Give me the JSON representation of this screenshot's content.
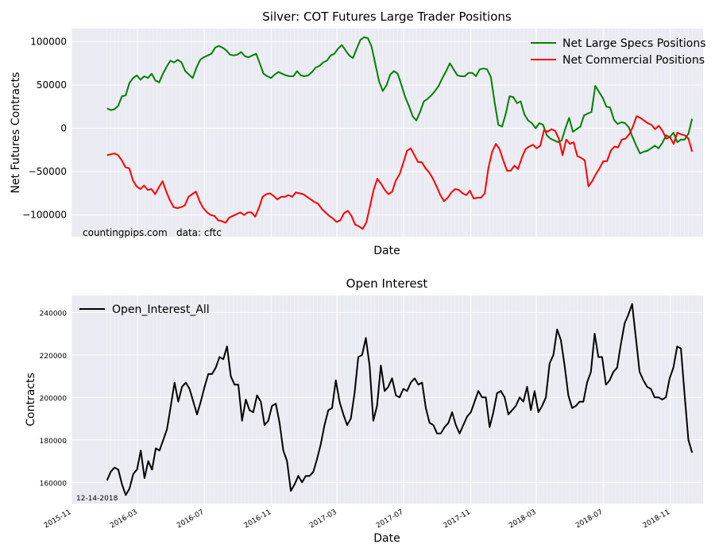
{
  "chart_data": [
    {
      "type": "line",
      "title": "Silver: COT Futures Large Trader Positions",
      "xlabel": "Date",
      "ylabel": "Net Futures Contracts",
      "x_range": [
        "2015-11-01",
        "2018-12-31"
      ],
      "ylim": [
        -125000,
        115000
      ],
      "y_ticks": [
        -100000,
        -50000,
        0,
        50000,
        100000
      ],
      "y_tick_labels": [
        "−100000",
        "−50000",
        "0",
        "50000",
        "100000"
      ],
      "grid": true,
      "legend": "top-right",
      "annotations": [
        "countingpips.com",
        "data: cftc"
      ],
      "series": [
        {
          "name": "Net Large Specs Positions",
          "color": "#008000",
          "values": [
            23000,
            21000,
            22000,
            26000,
            37000,
            38000,
            52000,
            58000,
            61000,
            56000,
            60000,
            58000,
            63000,
            55000,
            53000,
            63000,
            71000,
            78000,
            76000,
            79000,
            76000,
            66000,
            62000,
            58000,
            70000,
            79000,
            82000,
            84000,
            86000,
            93000,
            95000,
            93000,
            90000,
            85000,
            84000,
            85000,
            88000,
            83000,
            82000,
            84000,
            86000,
            75000,
            63000,
            60000,
            58000,
            62000,
            65000,
            63000,
            61000,
            60000,
            60000,
            66000,
            61000,
            60000,
            61000,
            65000,
            70000,
            72000,
            76000,
            78000,
            84000,
            86000,
            92000,
            96000,
            90000,
            84000,
            81000,
            92000,
            102000,
            105000,
            104000,
            94000,
            74000,
            54000,
            43000,
            50000,
            62000,
            66000,
            63000,
            50000,
            36000,
            26000,
            14000,
            9000,
            19000,
            31000,
            34000,
            38000,
            43000,
            49000,
            58000,
            66000,
            75000,
            68000,
            61000,
            60000,
            60000,
            64000,
            64000,
            60000,
            68000,
            69000,
            68000,
            59000,
            30000,
            4000,
            2000,
            17000,
            37000,
            36000,
            29000,
            31000,
            16000,
            9000,
            6000,
            0,
            6000,
            4000,
            -8000,
            -12000,
            -14000,
            -16000,
            -14000,
            0,
            12000,
            -4000,
            -1000,
            2000,
            15000,
            17000,
            19000,
            49000,
            42000,
            35000,
            25000,
            24000,
            10000,
            5000,
            7000,
            6000,
            1000,
            -10000,
            -20000,
            -29000,
            -27000,
            -26000,
            -23000,
            -20000,
            -23000,
            -17000,
            -8000,
            -10000,
            -5000,
            -16000,
            -13000,
            -13000,
            -6000,
            11000
          ]
        },
        {
          "name": "Net Commercial Positions",
          "color": "#ff0000",
          "values": [
            -31000,
            -30000,
            -29000,
            -31000,
            -37000,
            -45000,
            -46000,
            -60000,
            -67000,
            -70000,
            -66000,
            -71000,
            -70000,
            -76000,
            -68000,
            -61000,
            -73000,
            -83000,
            -91000,
            -92000,
            -91000,
            -89000,
            -79000,
            -76000,
            -73000,
            -84000,
            -92000,
            -97000,
            -100000,
            -101000,
            -106000,
            -107000,
            -109000,
            -103000,
            -101000,
            -99000,
            -97000,
            -100000,
            -97000,
            -97000,
            -102000,
            -92000,
            -79000,
            -76000,
            -75000,
            -78000,
            -82000,
            -79000,
            -79000,
            -77000,
            -79000,
            -74000,
            -75000,
            -76000,
            -79000,
            -82000,
            -85000,
            -87000,
            -93000,
            -97000,
            -101000,
            -104000,
            -108000,
            -106000,
            -98000,
            -95000,
            -101000,
            -111000,
            -113000,
            -116000,
            -109000,
            -90000,
            -71000,
            -58000,
            -64000,
            -71000,
            -76000,
            -73000,
            -60000,
            -53000,
            -40000,
            -26000,
            -23000,
            -31000,
            -39000,
            -39000,
            -46000,
            -51000,
            -58000,
            -67000,
            -77000,
            -84000,
            -80000,
            -74000,
            -70000,
            -71000,
            -75000,
            -77000,
            -72000,
            -81000,
            -80000,
            -80000,
            -75000,
            -45000,
            -27000,
            -18000,
            -24000,
            -37000,
            -49000,
            -49000,
            -43000,
            -47000,
            -34000,
            -24000,
            -21000,
            -19000,
            -23000,
            -20000,
            -2000,
            -4000,
            -1000,
            -3000,
            -12000,
            -31000,
            -13000,
            -18000,
            -16000,
            -32000,
            -34000,
            -37000,
            -67000,
            -61000,
            -53000,
            -46000,
            -38000,
            -38000,
            -26000,
            -21000,
            -22000,
            -13000,
            -12000,
            -7000,
            2000,
            14000,
            12000,
            9000,
            6000,
            4000,
            -1000,
            3000,
            -3000,
            -12000,
            -10000,
            -18000,
            -5000,
            -7000,
            -8000,
            -12000,
            -27000
          ]
        }
      ]
    },
    {
      "type": "line",
      "title": "Open Interest",
      "xlabel": "Date",
      "ylabel": "Contracts",
      "x_range": [
        "2015-11-01",
        "2018-12-31"
      ],
      "ylim": [
        150000,
        248000
      ],
      "y_ticks": [
        160000,
        180000,
        200000,
        220000,
        240000
      ],
      "y_tick_labels": [
        "160000",
        "180000",
        "200000",
        "220000",
        "240000"
      ],
      "grid": true,
      "legend": "top-left",
      "annotations": [
        "12-14-2018"
      ],
      "series": [
        {
          "name": "Open_Interest_All",
          "color": "#000000",
          "values": [
            161000,
            165000,
            167000,
            166000,
            159000,
            154000,
            157000,
            164000,
            166000,
            175000,
            162000,
            170000,
            166000,
            176000,
            175000,
            180000,
            185000,
            196000,
            207000,
            198000,
            205000,
            207000,
            204000,
            198000,
            192000,
            198000,
            205000,
            211000,
            211000,
            214000,
            219000,
            218000,
            224000,
            210000,
            206000,
            206000,
            189000,
            199000,
            194000,
            193000,
            201000,
            198000,
            187000,
            189000,
            196000,
            197000,
            188000,
            175000,
            170000,
            156000,
            159000,
            163000,
            160000,
            163000,
            163000,
            165000,
            171000,
            178000,
            187000,
            194000,
            195000,
            208000,
            198000,
            192000,
            187000,
            190000,
            202000,
            219000,
            220000,
            228000,
            215000,
            189000,
            196000,
            215000,
            203000,
            205000,
            209000,
            201000,
            200000,
            204000,
            203000,
            207000,
            209000,
            206000,
            207000,
            195000,
            188000,
            187000,
            183000,
            183000,
            186000,
            188000,
            193000,
            187000,
            183000,
            187000,
            191000,
            193000,
            198000,
            203000,
            200000,
            200000,
            186000,
            193000,
            202000,
            203000,
            200000,
            192000,
            194000,
            196000,
            200000,
            198000,
            205000,
            194000,
            203000,
            193000,
            196000,
            200000,
            216000,
            220000,
            232000,
            227000,
            215000,
            201000,
            195000,
            196000,
            198000,
            198000,
            207000,
            212000,
            230000,
            219000,
            219000,
            206000,
            208000,
            212000,
            214000,
            225000,
            235000,
            239000,
            244000,
            228000,
            212000,
            208000,
            205000,
            204000,
            200000,
            200000,
            199000,
            200000,
            209000,
            214000,
            224000,
            223000,
            201000,
            180000,
            174000
          ]
        }
      ]
    }
  ],
  "x_ticks": [
    {
      "label": "2015-11",
      "date": "2015-11-01"
    },
    {
      "label": "2016-03",
      "date": "2016-03-01"
    },
    {
      "label": "2016-07",
      "date": "2016-07-01"
    },
    {
      "label": "2016-11",
      "date": "2016-11-01"
    },
    {
      "label": "2017-03",
      "date": "2017-03-01"
    },
    {
      "label": "2017-07",
      "date": "2017-07-01"
    },
    {
      "label": "2017-11",
      "date": "2017-11-01"
    },
    {
      "label": "2018-03",
      "date": "2018-03-01"
    },
    {
      "label": "2018-07",
      "date": "2018-07-01"
    },
    {
      "label": "2018-11",
      "date": "2018-11-01"
    }
  ],
  "series_start_date": "2016-01-05",
  "series_end_date": "2018-12-11",
  "colors": {
    "plot_background": "#eaeaf2",
    "grid": "#ffffff",
    "axis_text": "#000000"
  }
}
